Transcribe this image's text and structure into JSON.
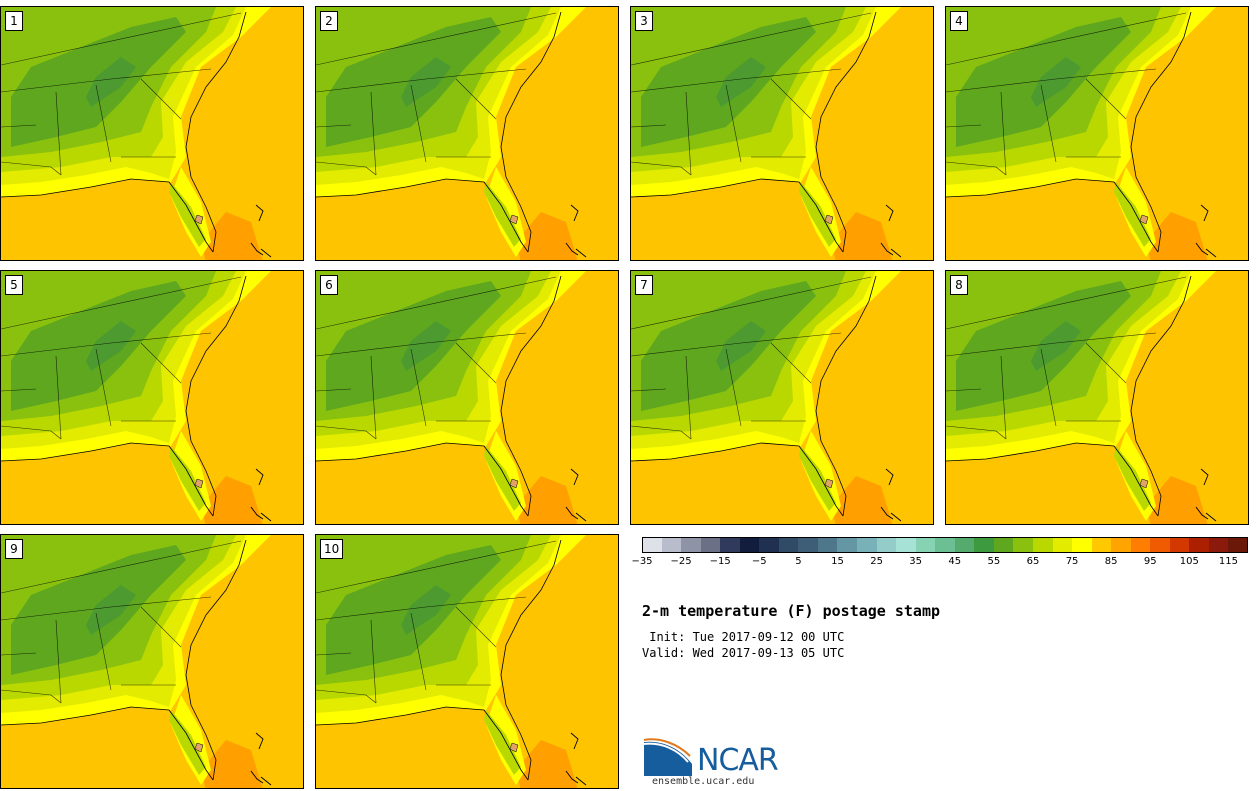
{
  "members": [
    "1",
    "2",
    "3",
    "4",
    "5",
    "6",
    "7",
    "8",
    "9",
    "10"
  ],
  "colorbar": {
    "colors": [
      "#dfe1e8",
      "#b8bccb",
      "#8e94a6",
      "#6b7087",
      "#303a5c",
      "#121c3c",
      "#1f3050",
      "#2f4b66",
      "#3e5e78",
      "#4f778c",
      "#6496a4",
      "#79b1b8",
      "#93ccc8",
      "#a7e2d6",
      "#88d2b4",
      "#6cbf93",
      "#55ab6e",
      "#3e9a3f",
      "#5ea71e",
      "#89c10e",
      "#b8d800",
      "#e2eb00",
      "#ffff00",
      "#ffc800",
      "#ffa400",
      "#ff7d00",
      "#f05a00",
      "#d23800",
      "#ac1f00",
      "#8c1a0c",
      "#6b1808"
    ],
    "ticks": [
      "−35",
      "−25",
      "−15",
      "−5",
      "5",
      "15",
      "25",
      "35",
      "45",
      "55",
      "65",
      "75",
      "85",
      "95",
      "105",
      "115"
    ]
  },
  "title": "2-m temperature (F) postage stamp",
  "init": " Init: Tue 2017-09-12 00 UTC",
  "valid": "Valid: Wed 2017-09-13 05 UTC",
  "logo": {
    "name": "NCAR",
    "url": "ensemble.ucar.edu",
    "colors": {
      "primary": "#165d9e",
      "accent": "#e07a1f"
    }
  },
  "map_colors": {
    "ocean_warm": "#ffc400",
    "ocean_hot": "#ff9f00",
    "coastal": "#ffff00",
    "land_hot": "#e2eb00",
    "land_mid": "#b8d800",
    "land_warm": "#89c10e",
    "land_cool": "#5ea71e"
  }
}
